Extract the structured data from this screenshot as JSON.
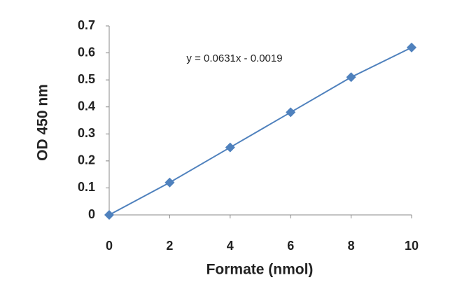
{
  "chart_data": {
    "type": "line",
    "x": [
      0,
      2,
      4,
      6,
      8,
      10
    ],
    "values": [
      0,
      0.12,
      0.25,
      0.38,
      0.51,
      0.62
    ],
    "color": "#4f81bd",
    "marker": "diamond",
    "xlim": [
      0,
      10
    ],
    "xticks": [
      0,
      2,
      4,
      6,
      8,
      10
    ],
    "ylim": [
      0,
      0.7
    ],
    "yticks": [
      0,
      0.1,
      0.2,
      0.3,
      0.4,
      0.5,
      0.6,
      0.7
    ],
    "x_label": "Formate (nmol)",
    "y_label": "OD 450 nm",
    "annotation": "y = 0.0631x - 0.0019",
    "grid": false
  }
}
